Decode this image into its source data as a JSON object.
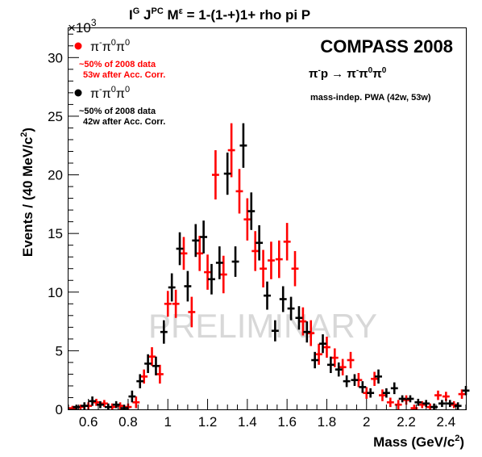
{
  "chart_data": {
    "type": "scatter",
    "title": "I",
    "title_sup_g": "G",
    "title_j": " J",
    "title_sup_pc": "PC",
    "title_m": " M",
    "title_sup_eps": "ε",
    "title_rest": " = 1-(1-+)1+ rho pi P",
    "xlabel": "Mass (GeV/c",
    "xlabel_sup": "2",
    "xlabel_end": ")",
    "ylabel": "Events / (40 MeV/c",
    "ylabel_sup": "2",
    "ylabel_end": ")",
    "y_multiplier_base": "×10",
    "y_multiplier_exp": "3",
    "xlim": [
      0.5,
      2.5
    ],
    "ylim": [
      0,
      32.5
    ],
    "x_ticks": [
      0.6,
      0.8,
      1,
      1.2,
      1.4,
      1.6,
      1.8,
      2,
      2.2,
      2.4
    ],
    "x_tick_labels": [
      "0.6",
      "0.8",
      "1",
      "1.2",
      "1.4",
      "1.6",
      "1.8",
      "2",
      "2.2",
      "2.4"
    ],
    "y_ticks": [
      0,
      5,
      10,
      15,
      20,
      25,
      30
    ],
    "y_tick_labels": [
      "0",
      "5",
      "10",
      "15",
      "20",
      "25",
      "30"
    ],
    "annotations": {
      "experiment": "COMPASS 2008",
      "reaction_main": "π",
      "reaction_sup1": "-",
      "reaction_p": "p → π",
      "reaction_sup2": "-",
      "reaction_pi0a": "π",
      "reaction_sup3": "0",
      "reaction_pi0b": "π",
      "reaction_sup4": "0",
      "analysis": "mass-indep. PWA (42w, 53w)",
      "watermark": "PRELIMINARY"
    },
    "legend_position": "top-left",
    "series": [
      {
        "legend_main": "π",
        "legend_s1": "-",
        "legend_m2": "π",
        "legend_s2": "0",
        "legend_m3": "π",
        "legend_s3": "0",
        "note_line1": "~50% of 2008 data",
        "note_line2": "53w after Acc. Corr.",
        "color": "#ff0000",
        "x": [
          0.52,
          0.56,
          0.6,
          0.64,
          0.68,
          0.72,
          0.76,
          0.8,
          0.84,
          0.88,
          0.92,
          0.96,
          1.0,
          1.04,
          1.08,
          1.12,
          1.16,
          1.2,
          1.24,
          1.28,
          1.32,
          1.36,
          1.4,
          1.44,
          1.48,
          1.52,
          1.56,
          1.6,
          1.64,
          1.68,
          1.72,
          1.76,
          1.8,
          1.84,
          1.88,
          1.92,
          1.96,
          2.0,
          2.04,
          2.08,
          2.12,
          2.16,
          2.2,
          2.24,
          2.28,
          2.32,
          2.36,
          2.4,
          2.44,
          2.48
        ],
        "y": [
          0.1,
          0.2,
          0.3,
          0.6,
          0.5,
          0.2,
          0.3,
          0.2,
          0.6,
          2.8,
          4.5,
          3.0,
          9.0,
          9.0,
          13.3,
          8.3,
          13.3,
          11.7,
          20.0,
          11.5,
          22.1,
          18.6,
          16.2,
          13.5,
          12.0,
          12.7,
          12.8,
          14.3,
          12.0,
          7.5,
          6.5,
          4.7,
          5.3,
          4.4,
          3.6,
          4.2,
          2.5,
          1.4,
          2.6,
          1.2,
          0.6,
          0.4,
          0.8,
          0.1,
          0.4,
          0.2,
          1.2,
          1.1,
          0.4,
          1.3
        ],
        "err": [
          0.2,
          0.2,
          0.3,
          0.3,
          0.3,
          0.3,
          0.3,
          0.3,
          0.5,
          0.6,
          0.8,
          0.8,
          1.1,
          1.2,
          1.4,
          1.3,
          1.5,
          1.5,
          2.1,
          1.6,
          2.3,
          1.9,
          1.8,
          1.7,
          1.6,
          1.6,
          1.6,
          1.6,
          1.5,
          1.2,
          1.1,
          0.9,
          0.9,
          0.8,
          0.7,
          0.7,
          0.6,
          0.5,
          0.6,
          0.5,
          0.4,
          0.4,
          0.4,
          0.3,
          0.3,
          0.3,
          0.4,
          0.4,
          0.3,
          0.4
        ]
      },
      {
        "legend_main": "π",
        "legend_s1": "-",
        "legend_m2": "π",
        "legend_s2": "0",
        "legend_m3": "π",
        "legend_s3": "0",
        "note_line1": "~50% of 2008 data",
        "note_line2": "42w after Acc. Corr.",
        "color": "#000000",
        "x": [
          0.54,
          0.58,
          0.62,
          0.66,
          0.7,
          0.74,
          0.78,
          0.82,
          0.86,
          0.9,
          0.94,
          0.98,
          1.02,
          1.06,
          1.1,
          1.14,
          1.18,
          1.22,
          1.26,
          1.3,
          1.34,
          1.38,
          1.42,
          1.46,
          1.5,
          1.54,
          1.58,
          1.62,
          1.66,
          1.7,
          1.74,
          1.78,
          1.82,
          1.86,
          1.9,
          1.94,
          1.98,
          2.02,
          2.06,
          2.1,
          2.14,
          2.18,
          2.22,
          2.26,
          2.3,
          2.34,
          2.38,
          2.42,
          2.46,
          2.5
        ],
        "y": [
          0.2,
          0.3,
          0.7,
          0.4,
          0.2,
          0.4,
          0.1,
          1.1,
          2.4,
          3.9,
          3.7,
          6.6,
          10.4,
          13.7,
          10.5,
          14.4,
          14.7,
          11.1,
          12.5,
          20.1,
          12.6,
          22.5,
          16.9,
          14.2,
          9.7,
          6.7,
          9.4,
          8.6,
          7.8,
          6.6,
          4.2,
          5.6,
          3.8,
          3.4,
          2.4,
          2.5,
          1.9,
          1.4,
          2.8,
          1.4,
          1.8,
          0.9,
          0.9,
          0.6,
          0.5,
          0.2,
          0.5,
          0.5,
          0.3,
          1.6
        ],
        "err": [
          0.2,
          0.3,
          0.4,
          0.3,
          0.3,
          0.3,
          0.3,
          0.5,
          0.6,
          0.8,
          0.8,
          1.0,
          1.2,
          1.4,
          1.3,
          1.4,
          1.4,
          1.3,
          1.4,
          1.8,
          1.3,
          1.9,
          1.6,
          1.5,
          1.2,
          0.9,
          1.1,
          1.0,
          1.0,
          0.9,
          0.7,
          0.8,
          0.7,
          0.6,
          0.5,
          0.5,
          0.5,
          0.4,
          0.6,
          0.4,
          0.5,
          0.3,
          0.3,
          0.3,
          0.3,
          0.3,
          0.3,
          0.3,
          0.3,
          0.4
        ]
      }
    ]
  }
}
